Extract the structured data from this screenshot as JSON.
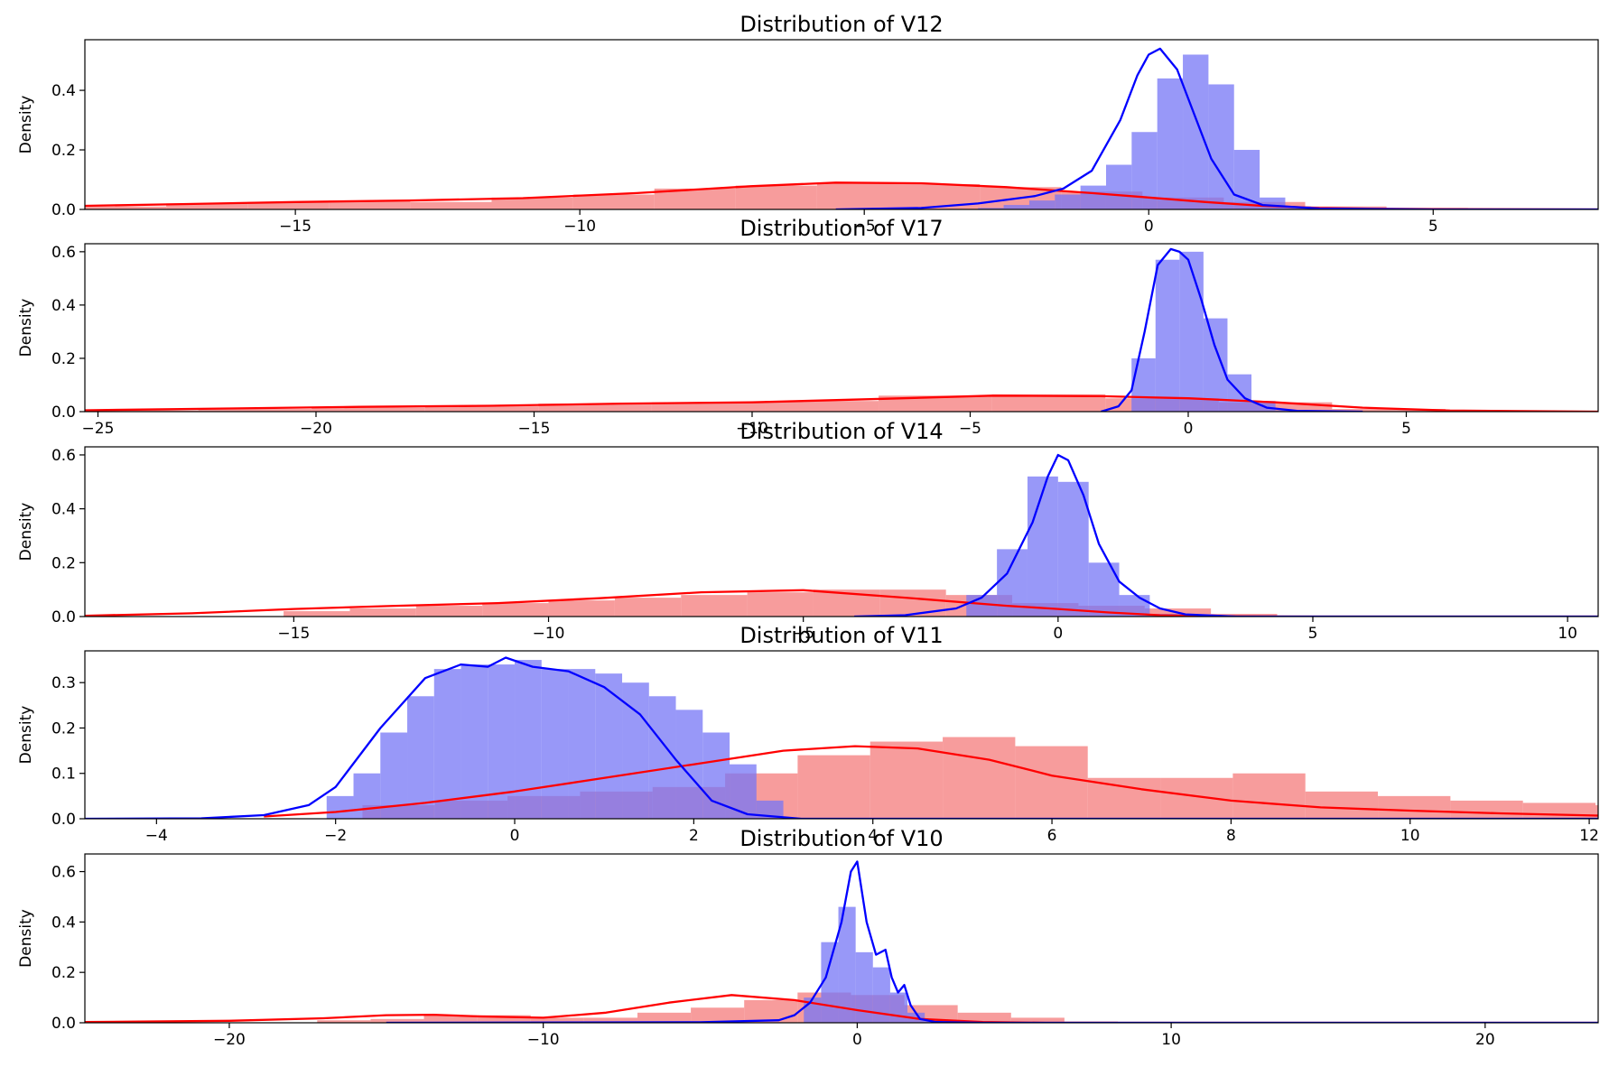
{
  "figure": {
    "background": "#ffffff"
  },
  "colors": {
    "fraud_hist": "#f47b7b",
    "fraud_kde": "#ff0000",
    "normal_hist": "#7575f5",
    "normal_kde": "#0000ff"
  },
  "chart_data": [
    {
      "type": "area",
      "title": "Distribution of V12",
      "ylabel": "Density",
      "xlim": [
        -18.7,
        7.9
      ],
      "ylim": [
        0,
        0.57
      ],
      "xticks": [
        -15,
        -10,
        -5,
        0,
        5
      ],
      "yticks": [
        0.0,
        0.2,
        0.4
      ],
      "series": [
        {
          "role": "red",
          "hist": {
            "start": -18.7,
            "width": 1.43,
            "values": [
              0.01,
              0.02,
              0.025,
              0.03,
              0.025,
              0.04,
              0.05,
              0.07,
              0.08,
              0.09,
              0.085,
              0.075,
              0.06,
              0.04,
              0.025,
              0.01,
              0.005,
              0.003,
              0.001
            ]
          },
          "kde": {
            "x": [
              -18.7,
              -17,
              -15,
              -13,
              -11,
              -9,
              -7,
              -5.5,
              -4,
              -2.5,
              -1,
              0,
              1,
              2,
              3,
              4,
              5,
              7.9
            ],
            "y": [
              0.012,
              0.018,
              0.025,
              0.03,
              0.038,
              0.055,
              0.078,
              0.09,
              0.088,
              0.075,
              0.055,
              0.04,
              0.025,
              0.012,
              0.005,
              0.002,
              0.001,
              0.0
            ]
          }
        },
        {
          "role": "blue",
          "hist": {
            "start": -3.0,
            "width": 0.45,
            "values": [
              0.005,
              0.015,
              0.03,
              0.05,
              0.08,
              0.15,
              0.26,
              0.44,
              0.52,
              0.42,
              0.2,
              0.04,
              0.01,
              0.002
            ]
          },
          "kde": {
            "x": [
              -5.5,
              -4,
              -3,
              -2,
              -1.5,
              -1,
              -0.5,
              -0.2,
              0,
              0.2,
              0.5,
              0.8,
              1.1,
              1.5,
              2,
              3,
              5,
              7.9
            ],
            "y": [
              0.0,
              0.005,
              0.02,
              0.045,
              0.07,
              0.13,
              0.3,
              0.45,
              0.52,
              0.54,
              0.47,
              0.32,
              0.17,
              0.05,
              0.015,
              0.003,
              0.0,
              0.0
            ]
          }
        }
      ]
    },
    {
      "type": "area",
      "title": "Distribution of V17",
      "ylabel": "Density",
      "xlim": [
        -25.3,
        9.4
      ],
      "ylim": [
        0,
        0.63
      ],
      "xticks": [
        -25,
        -20,
        -15,
        -10,
        -5,
        0,
        5
      ],
      "yticks": [
        0.0,
        0.2,
        0.4,
        0.6
      ],
      "series": [
        {
          "role": "red",
          "hist": {
            "start": -25.3,
            "width": 2.6,
            "values": [
              0.005,
              0.01,
              0.015,
              0.02,
              0.03,
              0.035,
              0.04,
              0.06,
              0.065,
              0.05,
              0.035,
              0.01,
              0.002,
              0.001
            ]
          },
          "kde": {
            "x": [
              -25.3,
              -22,
              -19,
              -16,
              -13,
              -10,
              -7,
              -4.5,
              -2,
              0,
              2,
              4,
              6,
              9.4
            ],
            "y": [
              0.005,
              0.012,
              0.018,
              0.022,
              0.03,
              0.035,
              0.048,
              0.06,
              0.058,
              0.05,
              0.035,
              0.015,
              0.004,
              0.0
            ]
          }
        },
        {
          "role": "blue",
          "hist": {
            "start": -1.3,
            "width": 0.55,
            "values": [
              0.2,
              0.57,
              0.6,
              0.35,
              0.14,
              0.04,
              0.005
            ]
          },
          "kde": {
            "x": [
              -2,
              -1.6,
              -1.3,
              -1,
              -0.7,
              -0.4,
              -0.2,
              0,
              0.3,
              0.6,
              0.9,
              1.3,
              1.8,
              2.5,
              4
            ],
            "y": [
              0.0,
              0.02,
              0.08,
              0.3,
              0.55,
              0.61,
              0.6,
              0.57,
              0.42,
              0.25,
              0.12,
              0.05,
              0.015,
              0.003,
              0.0
            ]
          }
        }
      ]
    },
    {
      "type": "area",
      "title": "Distribution of V14",
      "ylabel": "Density",
      "xlim": [
        -19.1,
        10.6
      ],
      "ylim": [
        0,
        0.63
      ],
      "xticks": [
        -15,
        -10,
        -5,
        0,
        5,
        10
      ],
      "yticks": [
        0.0,
        0.2,
        0.4,
        0.6
      ],
      "series": [
        {
          "role": "red",
          "hist": {
            "start": -15.2,
            "width": 1.3,
            "values": [
              0.02,
              0.03,
              0.04,
              0.05,
              0.06,
              0.07,
              0.08,
              0.09,
              0.1,
              0.1,
              0.08,
              0.05,
              0.04,
              0.03,
              0.01
            ]
          },
          "kde": {
            "x": [
              -19.1,
              -17,
              -15,
              -13,
              -11,
              -9,
              -7,
              -5,
              -3,
              -1,
              0,
              1,
              2,
              3,
              5,
              10.6
            ],
            "y": [
              0.003,
              0.012,
              0.028,
              0.04,
              0.05,
              0.068,
              0.09,
              0.098,
              0.07,
              0.04,
              0.028,
              0.015,
              0.005,
              0.001,
              0.0,
              0.0
            ]
          }
        },
        {
          "role": "blue",
          "hist": {
            "start": -1.8,
            "width": 0.6,
            "values": [
              0.08,
              0.25,
              0.52,
              0.5,
              0.2,
              0.08,
              0.01
            ]
          },
          "kde": {
            "x": [
              -4,
              -3,
              -2,
              -1.5,
              -1,
              -0.5,
              -0.2,
              0,
              0.2,
              0.5,
              0.8,
              1.2,
              1.6,
              2,
              2.5,
              3.5,
              10.6
            ],
            "y": [
              0.0,
              0.005,
              0.03,
              0.07,
              0.16,
              0.35,
              0.52,
              0.6,
              0.58,
              0.45,
              0.27,
              0.13,
              0.07,
              0.03,
              0.008,
              0.0,
              0.0
            ]
          }
        }
      ]
    },
    {
      "type": "area",
      "title": "Distribution of V11",
      "ylabel": "Density",
      "xlim": [
        -4.8,
        12.1
      ],
      "ylim": [
        0,
        0.37
      ],
      "xticks": [
        -4,
        -2,
        0,
        2,
        4,
        6,
        8,
        10,
        12
      ],
      "yticks": [
        0.0,
        0.1,
        0.2,
        0.3
      ],
      "series": [
        {
          "role": "red",
          "hist": {
            "start": -1.7,
            "width": 0.81,
            "values": [
              0.03,
              0.04,
              0.05,
              0.06,
              0.07,
              0.1,
              0.14,
              0.17,
              0.18,
              0.16,
              0.09,
              0.09,
              0.1,
              0.06,
              0.05,
              0.04,
              0.035,
              0.03,
              0.02
            ]
          },
          "kde": {
            "x": [
              -2.8,
              -2,
              -1,
              0,
              1,
              2,
              3,
              3.8,
              4.5,
              5.3,
              6,
              7,
              8,
              9,
              10,
              11,
              12.1
            ],
            "y": [
              0.005,
              0.015,
              0.035,
              0.06,
              0.09,
              0.12,
              0.15,
              0.16,
              0.155,
              0.13,
              0.095,
              0.065,
              0.04,
              0.025,
              0.018,
              0.012,
              0.007
            ]
          }
        },
        {
          "role": "blue",
          "hist": {
            "start": -2.1,
            "width": 0.3,
            "values": [
              0.05,
              0.1,
              0.19,
              0.27,
              0.33,
              0.34,
              0.34,
              0.35,
              0.33,
              0.33,
              0.32,
              0.3,
              0.27,
              0.24,
              0.19,
              0.12,
              0.04
            ]
          },
          "kde": {
            "x": [
              -4.8,
              -3.5,
              -2.8,
              -2.3,
              -2,
              -1.5,
              -1,
              -0.6,
              -0.3,
              -0.1,
              0.2,
              0.6,
              1,
              1.4,
              1.8,
              2.2,
              2.6,
              3.2,
              12.1
            ],
            "y": [
              0.0,
              0.001,
              0.008,
              0.03,
              0.07,
              0.2,
              0.31,
              0.34,
              0.335,
              0.355,
              0.335,
              0.325,
              0.29,
              0.23,
              0.13,
              0.04,
              0.01,
              0.0,
              0.0
            ]
          }
        }
      ]
    },
    {
      "type": "area",
      "title": "Distribution of V10",
      "ylabel": "Density",
      "xlim": [
        -24.6,
        23.6
      ],
      "ylim": [
        0,
        0.67
      ],
      "xticks": [
        -20,
        -10,
        0,
        10,
        20
      ],
      "yticks": [
        0.0,
        0.2,
        0.4,
        0.6
      ],
      "series": [
        {
          "role": "red",
          "hist": {
            "start": -17.2,
            "width": 1.7,
            "values": [
              0.01,
              0.015,
              0.03,
              0.03,
              0.02,
              0.02,
              0.04,
              0.06,
              0.09,
              0.12,
              0.11,
              0.07,
              0.04,
              0.02,
              0.005
            ]
          },
          "kde": {
            "x": [
              -24.6,
              -20,
              -17,
              -15,
              -13.5,
              -12,
              -10,
              -8,
              -6,
              -4,
              -2,
              0,
              2,
              4,
              6,
              23.6
            ],
            "y": [
              0.003,
              0.008,
              0.018,
              0.03,
              0.032,
              0.025,
              0.02,
              0.04,
              0.08,
              0.11,
              0.09,
              0.05,
              0.015,
              0.003,
              0.0,
              0.0
            ]
          }
        },
        {
          "role": "blue",
          "hist": {
            "start": -1.7,
            "width": 0.55,
            "values": [
              0.1,
              0.32,
              0.46,
              0.28,
              0.22,
              0.12,
              0.04,
              0.01
            ]
          },
          "kde": {
            "x": [
              -15,
              -5,
              -2.5,
              -2,
              -1.5,
              -1,
              -0.5,
              -0.2,
              0,
              0.3,
              0.6,
              0.9,
              1.1,
              1.3,
              1.5,
              1.7,
              2,
              2.5,
              4,
              23.6
            ],
            "y": [
              0.0,
              0.002,
              0.01,
              0.03,
              0.08,
              0.18,
              0.4,
              0.6,
              0.64,
              0.4,
              0.27,
              0.29,
              0.18,
              0.12,
              0.15,
              0.07,
              0.015,
              0.003,
              0.0,
              0.0
            ]
          }
        }
      ]
    }
  ]
}
